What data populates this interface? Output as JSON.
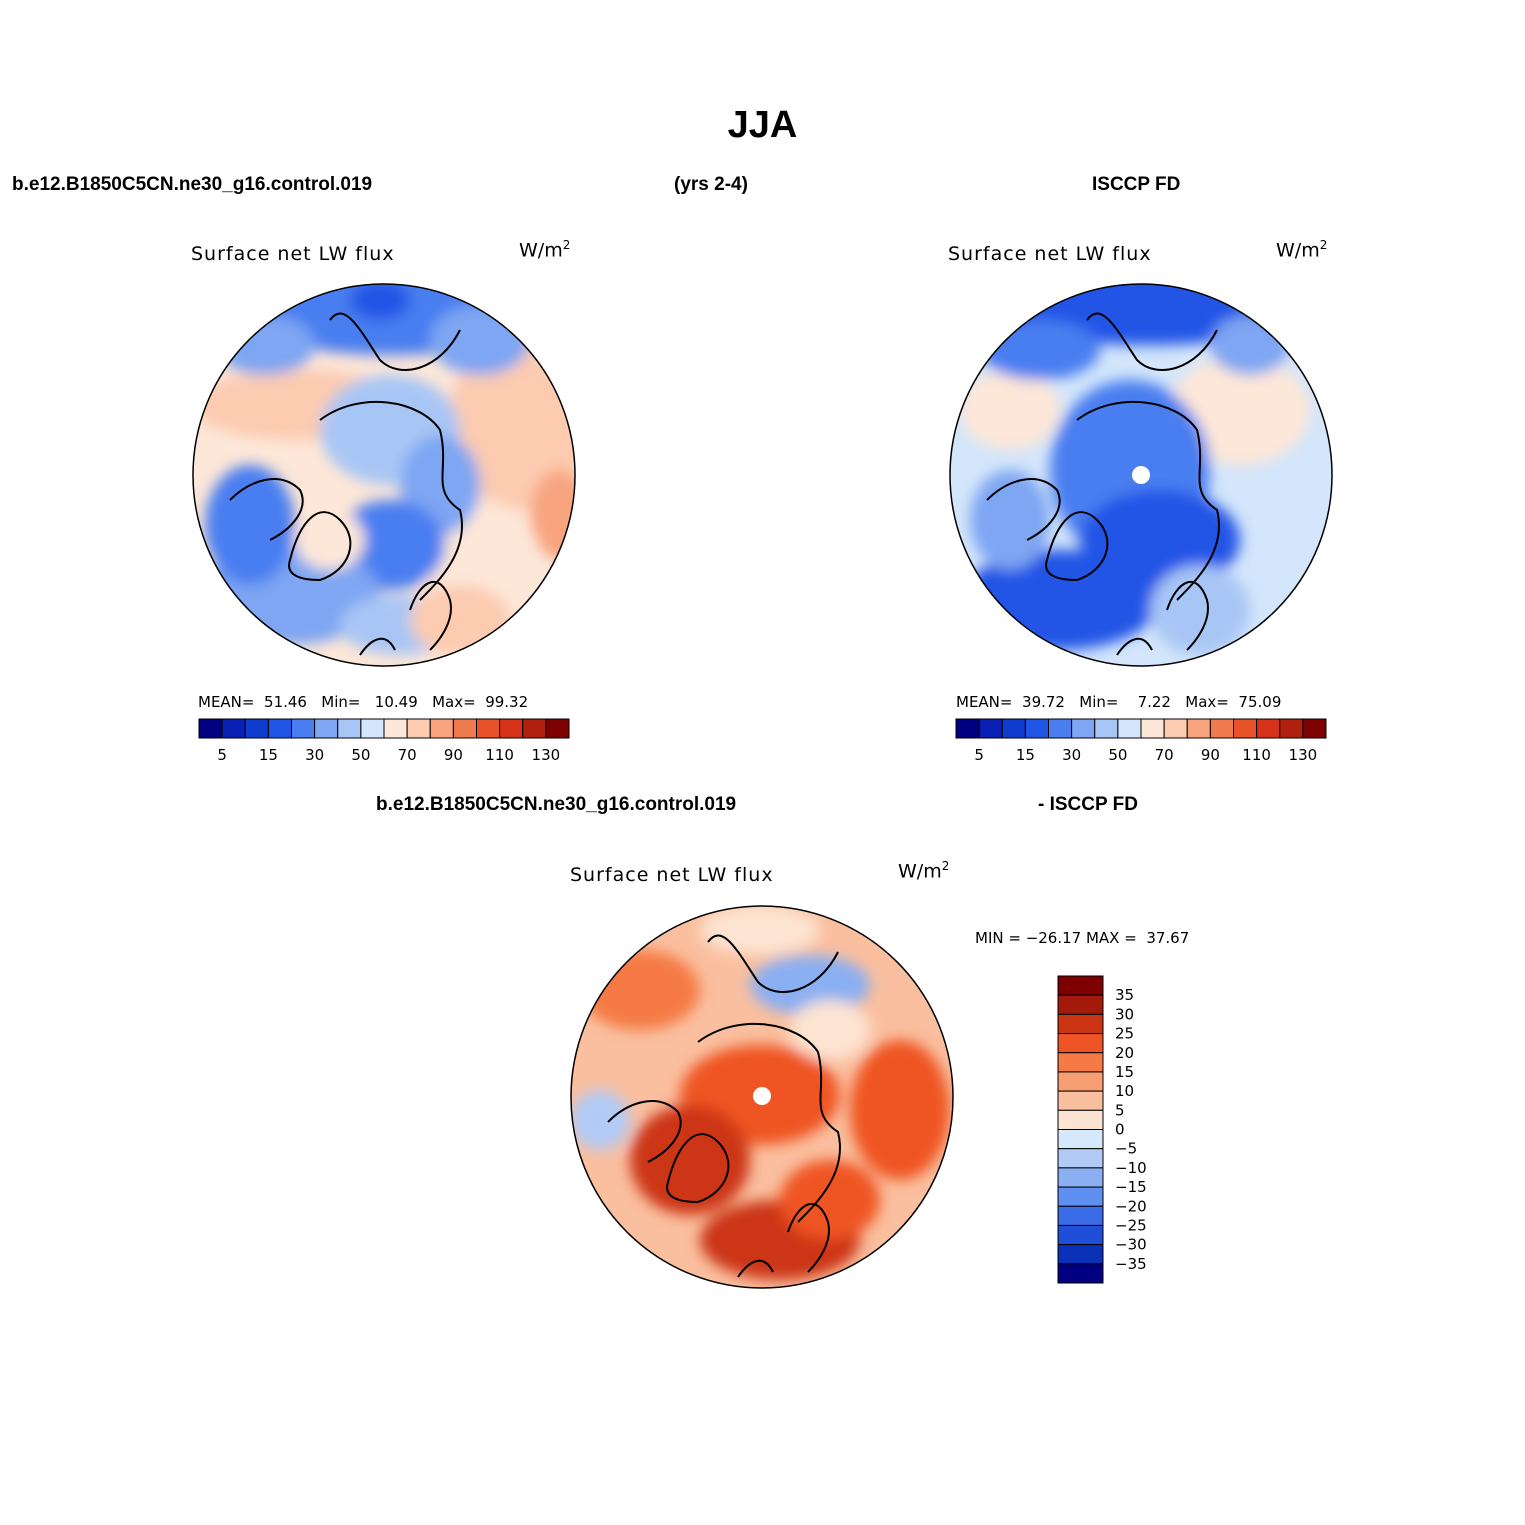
{
  "title": "JJA",
  "headers": {
    "case": "b.e12.B1850C5CN.ne30_g16.control.019",
    "years": "(yrs 2-4)",
    "obs": "ISCCP FD",
    "diff_case": "b.e12.B1850C5CN.ne30_g16.control.019",
    "diff_obs": "- ISCCP FD"
  },
  "panels": {
    "model": {
      "label": "Surface net LW flux",
      "unit": "W/m",
      "unit_exp": "2",
      "mean_label": "MEAN=",
      "mean": "51.46",
      "min_label": "Min=",
      "min": "10.49",
      "max_label": "Max=",
      "max": "99.32"
    },
    "obs": {
      "label": "Surface net LW flux",
      "unit": "W/m",
      "unit_exp": "2",
      "mean_label": "MEAN=",
      "mean": "39.72",
      "min_label": "Min=",
      "min": "7.22",
      "max_label": "Max=",
      "max": "75.09"
    },
    "diff": {
      "label": "Surface net LW flux",
      "unit": "W/m",
      "unit_exp": "2",
      "minmax": "MIN = −26.17 MAX =  37.67"
    }
  },
  "colorbar_abs": {
    "colors": [
      "#000080",
      "#0a1fb4",
      "#0f3ccf",
      "#2155e6",
      "#4a7ef0",
      "#7ea6f2",
      "#a8c6f5",
      "#d3e6fb",
      "#fde7d8",
      "#fccbb0",
      "#f7a47f",
      "#f07b4f",
      "#e8522b",
      "#d7331b",
      "#b0200f",
      "#7f0000"
    ],
    "tick_labels": [
      "5",
      "15",
      "30",
      "50",
      "70",
      "90",
      "110",
      "130"
    ]
  },
  "colorbar_diff": {
    "colors": [
      "#7f0000",
      "#a31a0a",
      "#cc3514",
      "#ef5424",
      "#f57a45",
      "#f79f73",
      "#fabf9f",
      "#fde4d2",
      "#d6e8fb",
      "#b2cbf6",
      "#8aaff2",
      "#5f8ff0",
      "#3b6ce8",
      "#1f4ed8",
      "#0a31b8",
      "#000080"
    ],
    "tick_labels": [
      "35",
      "30",
      "25",
      "20",
      "15",
      "10",
      "5",
      "0",
      "−5",
      "−10",
      "−15",
      "−20",
      "−25",
      "−30",
      "−35"
    ]
  }
}
